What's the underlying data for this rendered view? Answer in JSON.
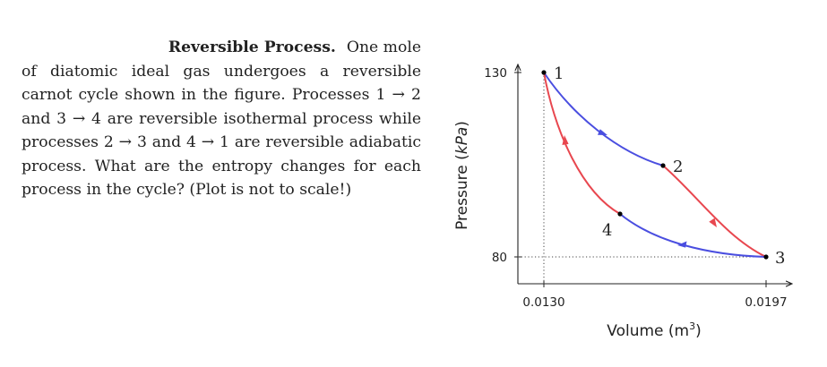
{
  "problem": {
    "title": "Reversible Process.",
    "lead": "One mole",
    "body": "of diatomic ideal gas undergoes a reversible carnot cycle shown in the figure. Processes 1 → 2 and 3 → 4 are reversible isothermal process while processes 2 → 3 and 4 → 1 are reversible adiabatic process. What are the entropy changes for each process in the cycle? (Plot is not to scale!)"
  },
  "chart_data": {
    "type": "line",
    "title": "",
    "xlabel": "Volume (m³)",
    "xlabel_base": "Volume (m",
    "xlabel_sup": "3",
    "xlabel_close": ")",
    "ylabel": "Pressure (kPa)",
    "ylabel_prefix": "Pressure (",
    "ylabel_unit": "kPa",
    "ylabel_close": ")",
    "x_ticks": [
      "0.0130",
      "0.0197"
    ],
    "y_ticks": [
      "130",
      "80"
    ],
    "not_to_scale": true,
    "points": [
      {
        "label": "1",
        "volume": 0.013,
        "pressure": 130
      },
      {
        "label": "2",
        "volume": null,
        "pressure": null
      },
      {
        "label": "3",
        "volume": 0.0197,
        "pressure": 80
      },
      {
        "label": "4",
        "volume": null,
        "pressure": null
      }
    ],
    "series": [
      {
        "name": "1 → 2",
        "process": "isothermal",
        "color": "#4a4ee0"
      },
      {
        "name": "2 → 3",
        "process": "adiabatic",
        "color": "#e8474f"
      },
      {
        "name": "3 → 4",
        "process": "isothermal",
        "color": "#4a4ee0"
      },
      {
        "name": "4 → 1",
        "process": "adiabatic",
        "color": "#e8474f"
      }
    ]
  }
}
